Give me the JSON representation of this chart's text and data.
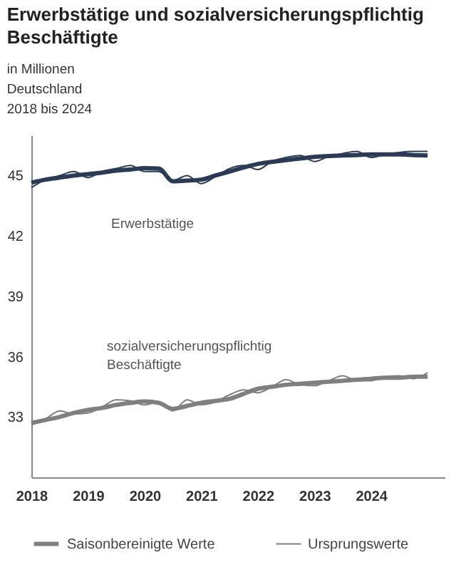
{
  "chart_data": {
    "type": "line",
    "title": "Erwerbstätige und sozialversicherungspflichtig\nBeschäftigte",
    "subtitle": "in Millionen\nDeutschland\n2018 bis 2024",
    "x": [
      2018,
      2018.25,
      2018.5,
      2018.75,
      2019,
      2019.25,
      2019.5,
      2019.75,
      2020,
      2020.25,
      2020.5,
      2020.75,
      2021,
      2021.25,
      2021.5,
      2021.75,
      2022,
      2022.25,
      2022.5,
      2022.75,
      2023,
      2023.25,
      2023.5,
      2023.75,
      2024,
      2024.25,
      2024.5,
      2024.75,
      2025
    ],
    "series": [
      {
        "color": "#2b3a55",
        "values": [
          44.65,
          44.8,
          44.9,
          45.0,
          45.07,
          45.15,
          45.25,
          45.3,
          45.37,
          45.35,
          44.72,
          44.75,
          44.8,
          45.0,
          45.2,
          45.4,
          45.58,
          45.68,
          45.77,
          45.85,
          45.93,
          45.97,
          46.0,
          46.02,
          46.05,
          46.05,
          46.05,
          46.02,
          46.0
        ]
      },
      {
        "color": "#2b3a55",
        "values": [
          44.4,
          44.8,
          45.0,
          45.2,
          44.9,
          45.2,
          45.35,
          45.5,
          45.2,
          45.2,
          44.75,
          45.0,
          44.6,
          44.95,
          45.35,
          45.5,
          45.3,
          45.7,
          45.9,
          46.0,
          45.7,
          45.95,
          46.1,
          46.2,
          45.9,
          46.05,
          46.15,
          46.2,
          46.2
        ]
      },
      {
        "name": "Saisonbereinigte Werte",
        "color": "#7f7f7f",
        "values": [
          32.7,
          32.85,
          33.0,
          33.2,
          33.35,
          33.45,
          33.6,
          33.7,
          33.77,
          33.7,
          33.4,
          33.55,
          33.7,
          33.8,
          33.9,
          34.15,
          34.4,
          34.5,
          34.6,
          34.65,
          34.7,
          34.75,
          34.8,
          34.85,
          34.9,
          34.95,
          34.95,
          35.0,
          35.0
        ]
      },
      {
        "name": "Ursprungswerte",
        "color": "#7f7f7f",
        "values": [
          32.6,
          32.9,
          33.3,
          33.15,
          33.2,
          33.5,
          33.85,
          33.8,
          33.6,
          33.75,
          33.3,
          33.85,
          33.6,
          33.75,
          34.1,
          34.35,
          34.2,
          34.5,
          34.85,
          34.6,
          34.55,
          34.8,
          35.05,
          34.8,
          34.8,
          35.0,
          35.05,
          34.9,
          35.2
        ]
      }
    ],
    "annotations": [
      "Erwerbstätige",
      "sozialversicherungspflichtig Beschäftigte"
    ],
    "xlim": [
      2018,
      2025.3
    ],
    "xticks": [
      2018,
      2019,
      2020,
      2021,
      2022,
      2023,
      2024
    ],
    "ylim": [
      30,
      47
    ],
    "yticks": [
      33,
      36,
      39,
      42,
      45
    ],
    "grid": false,
    "legend": "bottom",
    "marker": "none",
    "line_style": "solid"
  }
}
